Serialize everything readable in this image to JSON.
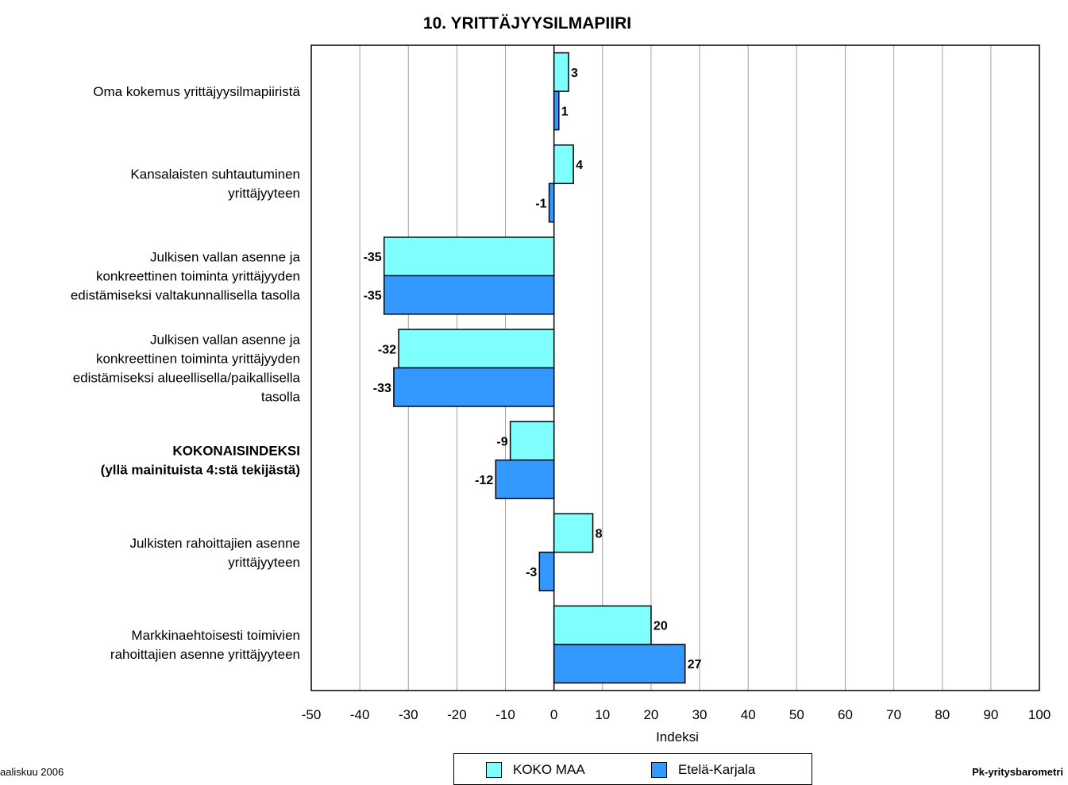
{
  "chart_data": {
    "type": "bar",
    "orientation": "horizontal",
    "title": "10. YRITTÄJYYSILMAPIIRI",
    "xlabel": "Indeksi",
    "ylabel": "",
    "xlim": [
      -50,
      100
    ],
    "xticks": [
      "-50",
      "-40",
      "-30",
      "-20",
      "-10",
      "0",
      "10",
      "20",
      "30",
      "40",
      "50",
      "60",
      "70",
      "80",
      "90",
      "100"
    ],
    "grid": true,
    "legend_position": "bottom",
    "categories": [
      {
        "lines": [
          "Oma kokemus yrittäjyysilmapiiristä"
        ],
        "bold": false
      },
      {
        "lines": [
          "Kansalaisten suhtautuminen",
          "yrittäjyyteen"
        ],
        "bold": false
      },
      {
        "lines": [
          "Julkisen vallan asenne ja",
          "konkreettinen toiminta yrittäjyyden",
          "edistämiseksi valtakunnallisella tasolla"
        ],
        "bold": false
      },
      {
        "lines": [
          "Julkisen vallan asenne ja",
          "konkreettinen toiminta yrittäjyyden",
          "edistämiseksi alueellisella/paikallisella",
          "tasolla"
        ],
        "bold": false
      },
      {
        "lines": [
          "KOKONAISINDEKSI",
          "(yllä mainituista 4:stä tekijästä)"
        ],
        "bold": true
      },
      {
        "lines": [
          "Julkisten rahoittajien asenne",
          "yrittäjyyteen"
        ],
        "bold": false
      },
      {
        "lines": [
          "Markkinaehtoisesti toimivien",
          "rahoittajien asenne yrittäjyyteen"
        ],
        "bold": false
      }
    ],
    "series": [
      {
        "name": "KOKO MAA",
        "color": "#80ffff",
        "values": [
          3,
          4,
          -35,
          -32,
          -9,
          8,
          20
        ]
      },
      {
        "name": "Etelä-Karjala",
        "color": "#3399ff",
        "values": [
          1,
          -1,
          -35,
          -33,
          -12,
          -3,
          27
        ]
      }
    ]
  },
  "footer": {
    "left": "aaliskuu 2006",
    "right": "Pk-yritysbarometri"
  }
}
